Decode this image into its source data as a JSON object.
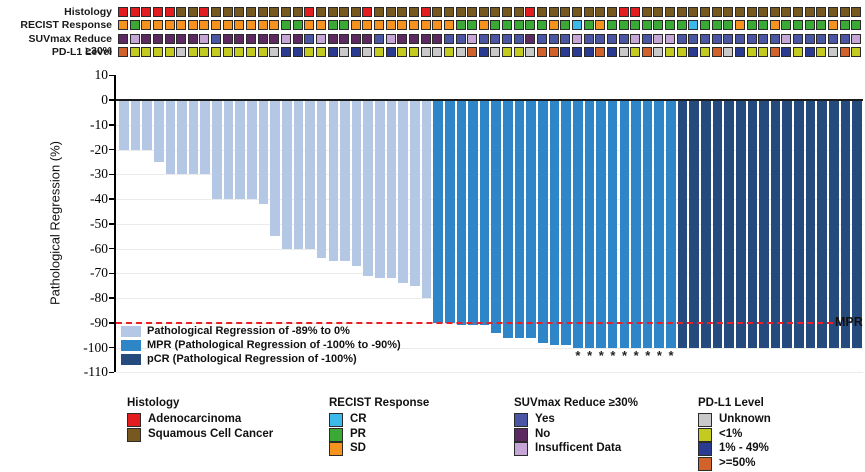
{
  "tracks": {
    "labels": [
      "Histology",
      "RECIST Response",
      "SUVmax Reduce ≥30%",
      "PD-L1 Level"
    ],
    "histology": [
      "A",
      "A",
      "A",
      "A",
      "A",
      "S",
      "S",
      "A",
      "S",
      "S",
      "S",
      "S",
      "S",
      "S",
      "S",
      "S",
      "A",
      "S",
      "S",
      "S",
      "S",
      "A",
      "S",
      "S",
      "S",
      "S",
      "A",
      "S",
      "S",
      "S",
      "S",
      "S",
      "S",
      "S",
      "S",
      "A",
      "S",
      "S",
      "S",
      "S",
      "S",
      "S",
      "S",
      "A",
      "A",
      "S",
      "S",
      "S",
      "S",
      "S",
      "S",
      "S",
      "S",
      "S",
      "S",
      "S",
      "S",
      "S",
      "S",
      "S",
      "S",
      "S",
      "S",
      "S"
    ],
    "recist": [
      "SD",
      "PR",
      "SD",
      "SD",
      "SD",
      "SD",
      "SD",
      "SD",
      "SD",
      "SD",
      "SD",
      "SD",
      "SD",
      "SD",
      "PR",
      "PR",
      "SD",
      "SD",
      "PR",
      "PR",
      "SD",
      "SD",
      "SD",
      "SD",
      "SD",
      "SD",
      "SD",
      "SD",
      "SD",
      "PR",
      "PR",
      "SD",
      "PR",
      "PR",
      "PR",
      "PR",
      "PR",
      "SD",
      "PR",
      "CR",
      "PR",
      "SD",
      "PR",
      "PR",
      "PR",
      "PR",
      "PR",
      "PR",
      "PR",
      "CR",
      "PR",
      "PR",
      "PR",
      "SD",
      "PR",
      "PR",
      "SD",
      "PR",
      "PR",
      "PR",
      "PR",
      "SD",
      "PR",
      "PR"
    ],
    "suvmax": [
      "N",
      "I",
      "N",
      "N",
      "N",
      "N",
      "N",
      "I",
      "Y",
      "N",
      "N",
      "N",
      "N",
      "N",
      "I",
      "N",
      "Y",
      "I",
      "N",
      "N",
      "N",
      "N",
      "Y",
      "I",
      "N",
      "N",
      "N",
      "N",
      "Y",
      "Y",
      "I",
      "Y",
      "Y",
      "Y",
      "Y",
      "N",
      "Y",
      "Y",
      "Y",
      "I",
      "Y",
      "Y",
      "Y",
      "Y",
      "I",
      "Y",
      "I",
      "I",
      "Y",
      "Y",
      "Y",
      "Y",
      "Y",
      "Y",
      "Y",
      "Y",
      "Y",
      "I",
      "Y",
      "Y",
      "Y",
      "Y",
      "Y",
      "I"
    ],
    "pdl1": [
      "H",
      "L",
      "L",
      "L",
      "L",
      "U",
      "L",
      "L",
      "L",
      "L",
      "L",
      "L",
      "L",
      "U",
      "M",
      "M",
      "L",
      "L",
      "M",
      "U",
      "M",
      "U",
      "L",
      "M",
      "L",
      "L",
      "U",
      "U",
      "L",
      "U",
      "H",
      "M",
      "U",
      "L",
      "L",
      "U",
      "H",
      "H",
      "M",
      "M",
      "M",
      "H",
      "M",
      "U",
      "L",
      "H",
      "U",
      "L",
      "L",
      "M",
      "L",
      "H",
      "U",
      "M",
      "L",
      "L",
      "H",
      "M",
      "L",
      "M",
      "L",
      "U",
      "H",
      "L"
    ],
    "palette": {
      "A": "#e31d1f",
      "S": "#77591f",
      "SD": "#f6921e",
      "PR": "#3aa935",
      "CR": "#3cb9ea",
      "Y": "#4a55a4",
      "N": "#5c2a60",
      "I": "#c5a6d6",
      "U": "#c9c9c9",
      "L": "#c3ca20",
      "M": "#2b3b91",
      "H": "#d2622b"
    }
  },
  "chart_data": {
    "type": "bar",
    "title": "",
    "xlabel": "",
    "ylabel": "Pathological Regression (%)",
    "ylim": [
      -110,
      10
    ],
    "yticks": [
      10,
      0,
      -10,
      -20,
      -30,
      -40,
      -50,
      -60,
      -70,
      -80,
      -90,
      -100,
      -110
    ],
    "grid": "horizontal",
    "values": [
      -20,
      -20,
      -20,
      -25,
      -30,
      -30,
      -30,
      -30,
      -40,
      -40,
      -40,
      -40,
      -42,
      -55,
      -60,
      -60,
      -60,
      -64,
      -65,
      -65,
      -67,
      -71,
      -72,
      -72,
      -74,
      -75,
      -80,
      -90,
      -90,
      -91,
      -91,
      -91,
      -94,
      -96,
      -96,
      -96,
      -98,
      -99,
      -99,
      -100,
      -100,
      -100,
      -100,
      -100,
      -100,
      -100,
      -100,
      -100,
      -100,
      -100,
      -100,
      -100,
      -100,
      -100,
      -100,
      -100,
      -100,
      -100,
      -100,
      -100,
      -100,
      -100,
      -100,
      -100
    ],
    "groups": {
      "light": [
        1,
        27
      ],
      "mpr": [
        28,
        48
      ],
      "pcr": [
        49,
        64
      ]
    },
    "group_colors": {
      "light": "#b4c7e4",
      "mpr": "#2e86c9",
      "pcr": "#254a7e"
    },
    "legend": [
      {
        "key": "light",
        "label": "Pathological Regression of -89% to 0%"
      },
      {
        "key": "mpr",
        "label": "MPR (Pathological Regression of -100% to -90%)"
      },
      {
        "key": "pcr",
        "label": "pCR (Pathological Regression of -100%)"
      }
    ],
    "reference_line": {
      "value": -90,
      "label": "MPR",
      "color": "#ec2024",
      "style": "dashed"
    },
    "asterisk_columns": [
      40,
      41,
      42,
      43,
      44,
      45,
      46,
      47,
      48
    ],
    "asterisk_symbol": "*"
  },
  "bottom_legends": [
    {
      "title": "Histology",
      "items": [
        {
          "label": "Adenocarcinoma",
          "color": "#e31d1f"
        },
        {
          "label": "Squamous Cell Cancer",
          "color": "#77591f"
        }
      ]
    },
    {
      "title": "RECIST Response",
      "items": [
        {
          "label": "CR",
          "color": "#3cb9ea"
        },
        {
          "label": "PR",
          "color": "#3aa935"
        },
        {
          "label": "SD",
          "color": "#f6921e"
        }
      ]
    },
    {
      "title": "SUVmax Reduce ≥30%",
      "items": [
        {
          "label": "Yes",
          "color": "#4a55a4"
        },
        {
          "label": "No",
          "color": "#5c2a60"
        },
        {
          "label": "Insufficent Data",
          "color": "#c5a6d6"
        }
      ]
    },
    {
      "title": "PD-L1 Level",
      "items": [
        {
          "label": "Unknown",
          "color": "#c9c9c9"
        },
        {
          "label": "<1%",
          "color": "#c3ca20"
        },
        {
          "label": "1% - 49%",
          "color": "#2b3b91"
        },
        {
          "label": ">=50%",
          "color": "#d2622b"
        }
      ]
    }
  ]
}
